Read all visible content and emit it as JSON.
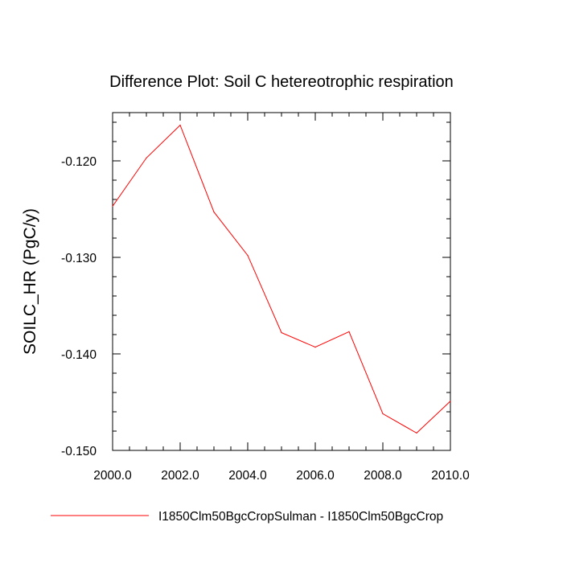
{
  "chart_data": {
    "type": "line",
    "title": "Difference Plot: Soil C hetereotrophic respiration",
    "xlabel": "",
    "ylabel": "SOILC_HR  (PgC/y)",
    "xlim": [
      2000,
      2010
    ],
    "ylim": [
      -0.15,
      -0.115
    ],
    "xticks": [
      2000,
      2002,
      2004,
      2006,
      2008,
      2010
    ],
    "xtick_labels": [
      "2000.0",
      "2002.0",
      "2004.0",
      "2006.0",
      "2008.0",
      "2010.0"
    ],
    "yticks": [
      -0.15,
      -0.14,
      -0.13,
      -0.12
    ],
    "ytick_labels": [
      "-0.150",
      "-0.140",
      "-0.130",
      "-0.120"
    ],
    "x_minor_step": 0.5,
    "y_minor_step": 0.002,
    "grid": false,
    "legend_position": "bottom",
    "series": [
      {
        "name": "I1850Clm50BgcCropSulman - I1850Clm50BgcCrop",
        "color": "#ff0000",
        "x": [
          2000,
          2001,
          2002,
          2003,
          2004,
          2005,
          2006,
          2007,
          2008,
          2009,
          2010
        ],
        "y": [
          -0.1247,
          -0.1197,
          -0.1163,
          -0.1253,
          -0.1298,
          -0.1378,
          -0.1393,
          -0.1377,
          -0.1462,
          -0.1482,
          -0.1449
        ]
      }
    ]
  }
}
